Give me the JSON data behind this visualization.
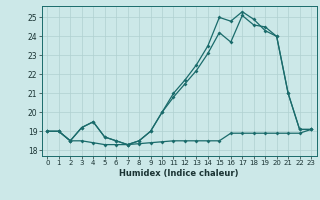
{
  "xlabel": "Humidex (Indice chaleur)",
  "ylabel": "",
  "bg_color": "#cce8e8",
  "line_color": "#1a6b6b",
  "grid_color": "#b0d0d0",
  "xlim": [
    -0.5,
    23.5
  ],
  "ylim": [
    17.7,
    25.6
  ],
  "xticks": [
    0,
    1,
    2,
    3,
    4,
    5,
    6,
    7,
    8,
    9,
    10,
    11,
    12,
    13,
    14,
    15,
    16,
    17,
    18,
    19,
    20,
    21,
    22,
    23
  ],
  "yticks": [
    18,
    19,
    20,
    21,
    22,
    23,
    24,
    25
  ],
  "line1_x": [
    0,
    1,
    2,
    3,
    4,
    5,
    6,
    7,
    8,
    9,
    10,
    11,
    12,
    13,
    14,
    15,
    16,
    17,
    18,
    19,
    20,
    21,
    22,
    23
  ],
  "line1_y": [
    19.0,
    19.0,
    18.5,
    18.5,
    18.4,
    18.3,
    18.3,
    18.3,
    18.35,
    18.4,
    18.45,
    18.5,
    18.5,
    18.5,
    18.5,
    18.5,
    18.9,
    18.9,
    18.9,
    18.9,
    18.9,
    18.9,
    18.9,
    19.1
  ],
  "line2_x": [
    0,
    1,
    2,
    3,
    4,
    5,
    6,
    7,
    8,
    9,
    10,
    11,
    12,
    13,
    14,
    15,
    16,
    17,
    18,
    19,
    20,
    21,
    22,
    23
  ],
  "line2_y": [
    19.0,
    19.0,
    18.5,
    19.2,
    19.5,
    18.7,
    18.5,
    18.3,
    18.5,
    19.0,
    20.0,
    21.0,
    21.7,
    22.5,
    23.5,
    25.0,
    24.8,
    25.3,
    24.9,
    24.3,
    24.0,
    21.0,
    19.1,
    19.1
  ],
  "line3_x": [
    0,
    1,
    2,
    3,
    4,
    5,
    6,
    7,
    8,
    9,
    10,
    11,
    12,
    13,
    14,
    15,
    16,
    17,
    18,
    19,
    20,
    21,
    22,
    23
  ],
  "line3_y": [
    19.0,
    19.0,
    18.5,
    19.2,
    19.5,
    18.7,
    18.5,
    18.3,
    18.5,
    19.0,
    20.0,
    20.8,
    21.5,
    22.2,
    23.1,
    24.2,
    23.7,
    25.1,
    24.6,
    24.5,
    24.0,
    21.0,
    19.1,
    19.1
  ]
}
